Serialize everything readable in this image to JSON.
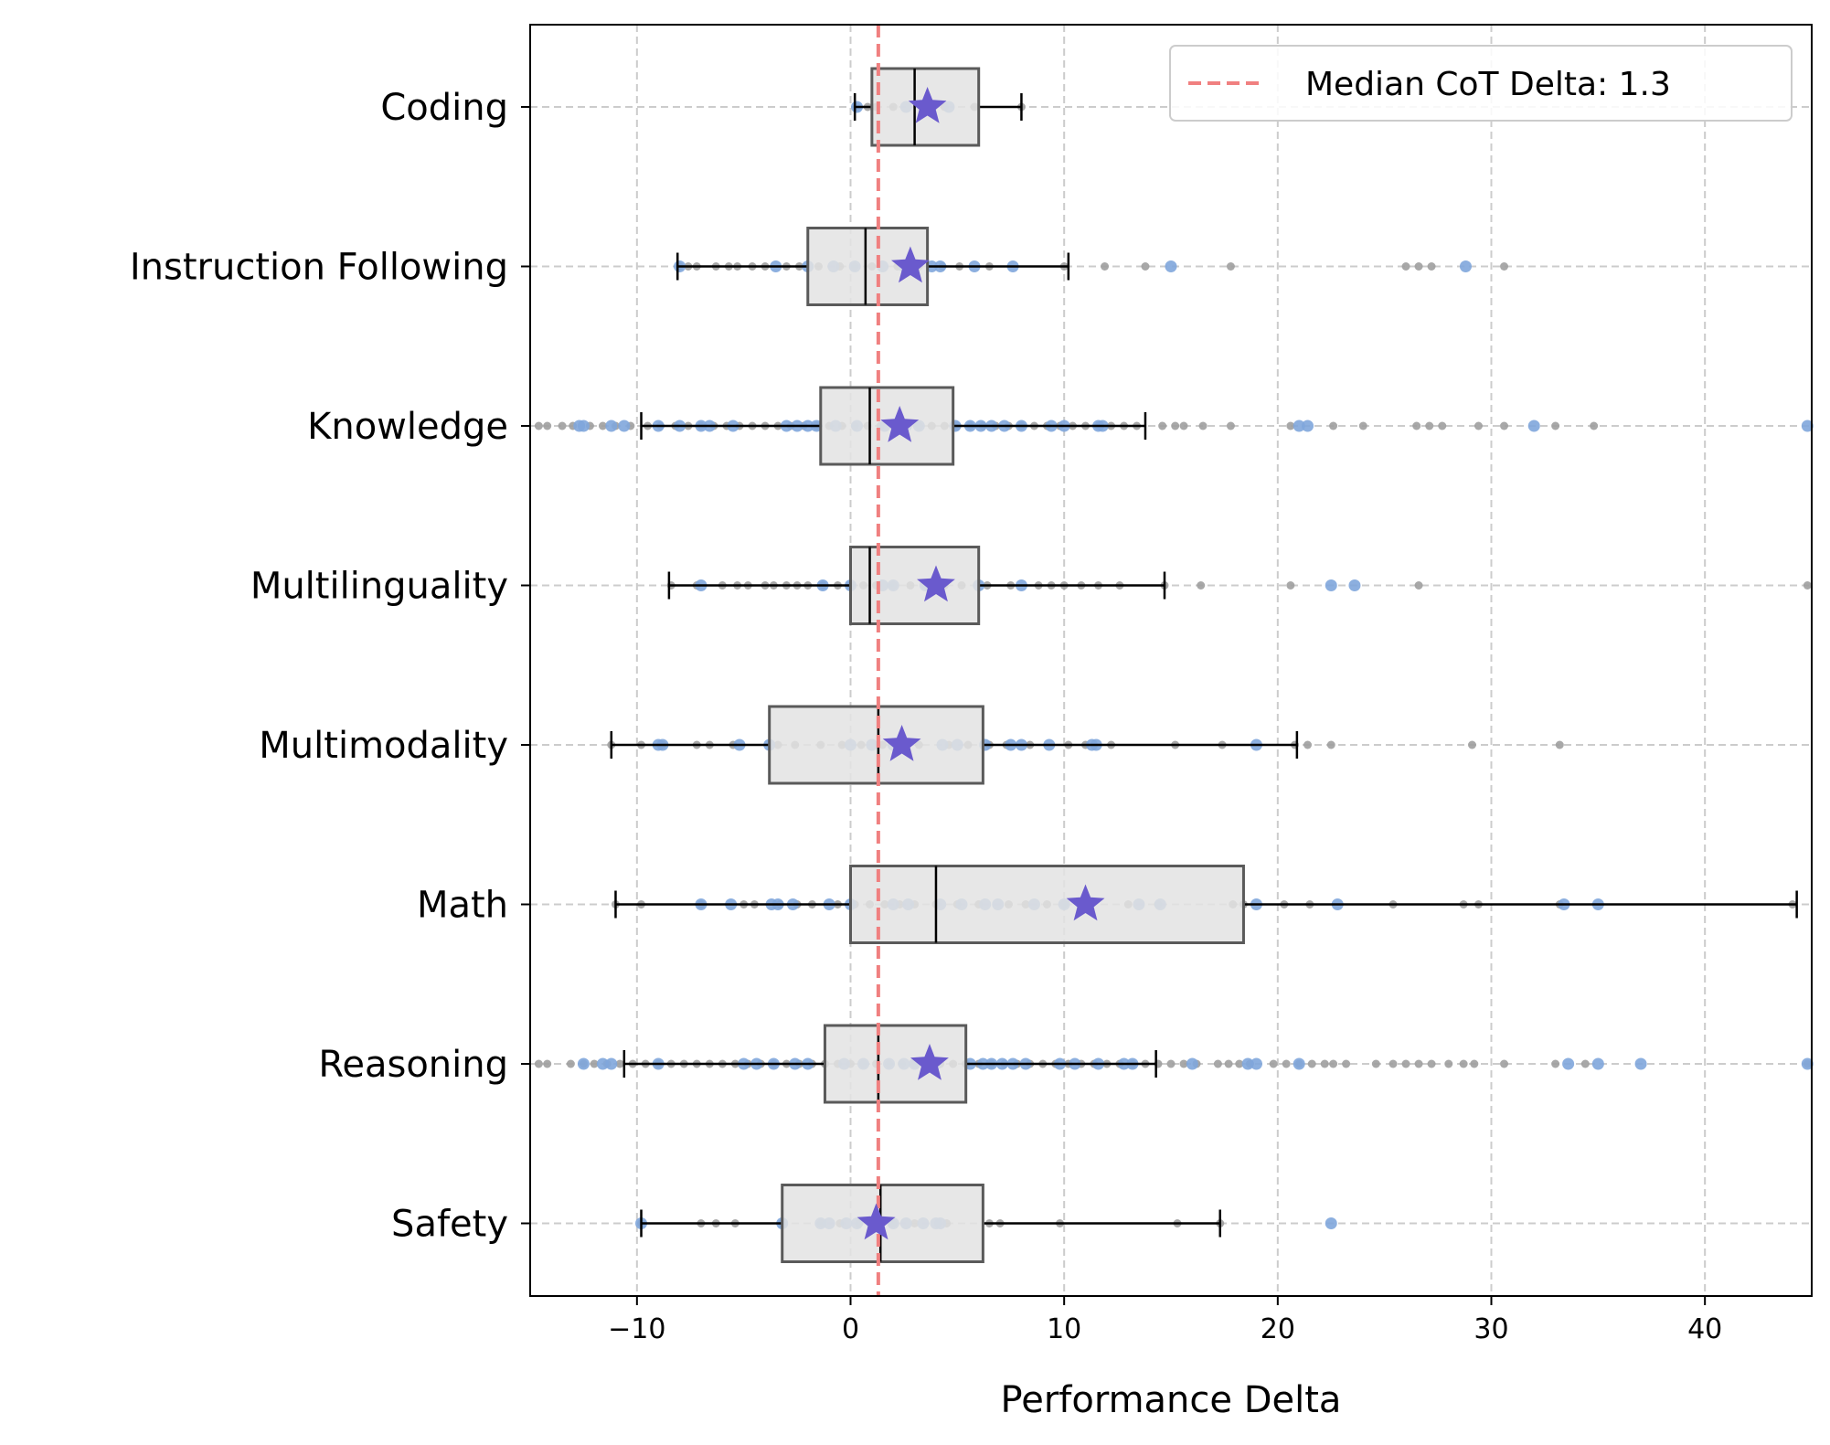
{
  "chart_data": {
    "type": "box",
    "xlabel": "Performance Delta",
    "ylabel": "",
    "xlim": [
      -15,
      45
    ],
    "xticks": [
      -10,
      0,
      10,
      20,
      30,
      40
    ],
    "xtick_labels": [
      "−10",
      "0",
      "10",
      "20",
      "30",
      "40"
    ],
    "grid": true,
    "legend_position": "top-right",
    "reference_line": {
      "label": "Median CoT Delta: 1.3",
      "value": 1.3,
      "color": "#f08080",
      "style": "dashed"
    },
    "colors": {
      "box_fill": "#e3e3e3",
      "box_edge": "#5a5a5a",
      "mean_marker": "#6a5acd",
      "point_gray": "#9e9e9e",
      "point_blue": "#7fa6dc",
      "grid": "#cccccc"
    },
    "categories": [
      "Coding",
      "Instruction Following",
      "Knowledge",
      "Multilinguality",
      "Multimodality",
      "Math",
      "Reasoning",
      "Safety"
    ],
    "series": [
      {
        "category": "Coding",
        "q1": 1.0,
        "median": 3.0,
        "q3": 6.0,
        "whisker_low": 0.2,
        "whisker_high": 8.0,
        "mean": 3.6,
        "points_gray": [
          0.3,
          0.8,
          1.2,
          2.0,
          3.5,
          4.4,
          5.8,
          8.0
        ],
        "points_blue": [
          0.3,
          2.6,
          4.6
        ]
      },
      {
        "category": "Instruction Following",
        "q1": -2.0,
        "median": 0.7,
        "q3": 3.6,
        "whisker_low": -8.1,
        "whisker_high": 10.2,
        "mean": 2.8,
        "points_gray": [
          -8.0,
          -7.6,
          -7.2,
          -6.3,
          -5.7,
          -5.3,
          -4.6,
          -4.0,
          -3.0,
          -2.4,
          -1.5,
          -0.5,
          0.2,
          1.0,
          2.2,
          3.2,
          4.3,
          5.1,
          6.5,
          10.0,
          11.9,
          13.8,
          17.8,
          26.0,
          26.6,
          27.2,
          30.6
        ],
        "points_blue": [
          -8.0,
          -3.5,
          -2.0,
          -0.8,
          0.2,
          1.5,
          2.5,
          3.8,
          4.2,
          5.8,
          7.6,
          15.0,
          28.8
        ]
      },
      {
        "category": "Knowledge",
        "q1": -1.4,
        "median": 0.9,
        "q3": 4.8,
        "whisker_low": -9.8,
        "whisker_high": 13.8,
        "mean": 2.3,
        "points_gray": [
          -14.6,
          -14.2,
          -13.5,
          -13.0,
          -12.2,
          -11.6,
          -11.0,
          -10.3,
          -9.5,
          -8.9,
          -8.2,
          -7.6,
          -7.0,
          -6.4,
          -5.8,
          -5.2,
          -4.6,
          -4.0,
          -3.4,
          -2.8,
          -2.2,
          -1.6,
          -1.0,
          -0.4,
          0.2,
          0.8,
          1.4,
          2.0,
          2.6,
          3.2,
          3.8,
          4.4,
          5.0,
          5.6,
          6.2,
          6.8,
          7.4,
          8.0,
          8.6,
          9.2,
          9.8,
          10.4,
          11.0,
          11.6,
          12.2,
          12.8,
          13.4,
          14.6,
          15.2,
          15.6,
          16.5,
          17.8,
          20.6,
          22.6,
          24.0,
          26.5,
          27.1,
          27.7,
          29.4,
          30.6,
          33.0,
          34.8
        ],
        "points_blue": [
          -12.7,
          -12.5,
          -11.2,
          -10.6,
          -9.0,
          -8.0,
          -7.0,
          -6.6,
          -5.5,
          -3.0,
          -2.5,
          -2.0,
          -1.6,
          -0.7,
          0.3,
          1.6,
          2.6,
          3.2,
          4.9,
          5.6,
          6.1,
          6.6,
          7.2,
          8.0,
          9.4,
          10.0,
          11.6,
          11.8,
          21.0,
          21.4,
          32.0,
          44.8
        ]
      },
      {
        "category": "Multilinguality",
        "q1": 0.0,
        "median": 0.9,
        "q3": 6.0,
        "whisker_low": -8.5,
        "whisker_high": 14.7,
        "mean": 4.0,
        "points_gray": [
          -8.4,
          -7.2,
          -6.0,
          -5.3,
          -4.8,
          -4.0,
          -3.6,
          -3.0,
          -2.5,
          -2.0,
          -1.3,
          -0.6,
          0.0,
          0.6,
          1.2,
          2.0,
          2.8,
          3.5,
          4.4,
          5.2,
          6.4,
          7.5,
          8.8,
          9.4,
          10.0,
          10.8,
          11.6,
          12.6,
          14.7,
          16.4,
          20.6,
          26.6,
          44.8
        ],
        "points_blue": [
          -7.0,
          -1.3,
          0.0,
          1.5,
          2.0,
          3.5,
          6.0,
          8.0,
          22.5,
          23.6
        ]
      },
      {
        "category": "Multimodality",
        "q1": -3.8,
        "median": 1.3,
        "q3": 6.2,
        "whisker_low": -11.2,
        "whisker_high": 20.9,
        "mean": 2.4,
        "points_gray": [
          -11.2,
          -9.8,
          -8.8,
          -7.2,
          -6.6,
          -5.5,
          -3.4,
          -2.6,
          -1.4,
          -0.4,
          0.5,
          1.5,
          2.4,
          3.2,
          4.6,
          5.5,
          6.5,
          7.3,
          8.4,
          10.2,
          11.0,
          12.2,
          15.2,
          17.4,
          20.8,
          21.4,
          22.5,
          29.1,
          33.2
        ],
        "points_blue": [
          -9.0,
          -8.8,
          -5.2,
          -3.8,
          0.0,
          1.0,
          2.0,
          4.3,
          5.0,
          6.3,
          7.5,
          8.0,
          9.3,
          11.3,
          11.5,
          19.0
        ]
      },
      {
        "category": "Math",
        "q1": 0.0,
        "median": 4.0,
        "q3": 18.4,
        "whisker_low": -11.0,
        "whisker_high": 44.3,
        "mean": 11.0,
        "points_gray": [
          -11.0,
          -9.8,
          -7.0,
          -5.0,
          -4.5,
          -3.3,
          -2.5,
          -1.8,
          -0.6,
          0.2,
          0.9,
          1.6,
          2.3,
          3.0,
          4.0,
          5.0,
          6.0,
          7.4,
          8.2,
          9.2,
          10.0,
          13.0,
          14.4,
          17.9,
          18.4,
          20.3,
          21.5,
          25.4,
          28.7,
          29.4,
          33.2,
          44.1
        ],
        "points_blue": [
          -7.0,
          -5.6,
          -3.7,
          -3.4,
          -2.7,
          -1.0,
          0.0,
          2.0,
          2.7,
          4.2,
          5.2,
          6.3,
          6.9,
          8.6,
          10.0,
          13.5,
          14.5,
          19.0,
          22.8,
          33.4,
          35.0
        ]
      },
      {
        "category": "Reasoning",
        "q1": -1.2,
        "median": 1.3,
        "q3": 5.4,
        "whisker_low": -10.6,
        "whisker_high": 14.3,
        "mean": 3.7,
        "points_gray": [
          -14.6,
          -14.2,
          -13.1,
          -12.5,
          -12.0,
          -11.4,
          -10.8,
          -10.2,
          -9.6,
          -9.0,
          -8.4,
          -7.8,
          -7.2,
          -6.6,
          -6.0,
          -5.4,
          -4.8,
          -4.2,
          -3.6,
          -3.0,
          -2.4,
          -1.8,
          -1.2,
          -0.6,
          0.0,
          0.6,
          1.2,
          1.8,
          2.4,
          3.0,
          3.6,
          4.2,
          4.8,
          5.4,
          6.0,
          6.6,
          7.2,
          7.8,
          8.4,
          9.0,
          9.6,
          10.2,
          10.8,
          11.4,
          12.0,
          12.6,
          13.2,
          13.8,
          14.4,
          15.0,
          15.6,
          16.2,
          17.2,
          17.7,
          18.2,
          18.7,
          19.8,
          20.4,
          21.0,
          21.6,
          22.2,
          22.6,
          23.2,
          24.6,
          25.4,
          26.0,
          26.6,
          27.2,
          28.0,
          28.7,
          29.2,
          30.6,
          33.0,
          34.4,
          44.8
        ],
        "points_blue": [
          -12.5,
          -11.6,
          -11.2,
          -9.0,
          -5.0,
          -4.4,
          -3.6,
          -2.6,
          -2.0,
          -0.3,
          0.6,
          1.8,
          2.5,
          3.0,
          4.0,
          5.6,
          6.2,
          6.6,
          7.1,
          7.6,
          8.2,
          9.8,
          10.5,
          11.6,
          12.8,
          13.2,
          16.0,
          18.6,
          19.0,
          21.0,
          33.6,
          35.0,
          37.0,
          44.8
        ]
      },
      {
        "category": "Safety",
        "q1": -3.2,
        "median": 1.4,
        "q3": 6.2,
        "whisker_low": -9.8,
        "whisker_high": 17.3,
        "mean": 1.2,
        "points_gray": [
          -9.8,
          -7.0,
          -6.3,
          -5.4,
          -3.2,
          -1.4,
          -0.5,
          0.4,
          1.3,
          2.0,
          3.0,
          4.5,
          6.5,
          7.0,
          9.8,
          15.3,
          17.3
        ],
        "points_blue": [
          -9.8,
          -3.2,
          -1.4,
          -1.0,
          -0.2,
          0.3,
          1.0,
          2.0,
          2.6,
          3.4,
          4.0,
          4.2,
          22.5
        ]
      }
    ]
  }
}
